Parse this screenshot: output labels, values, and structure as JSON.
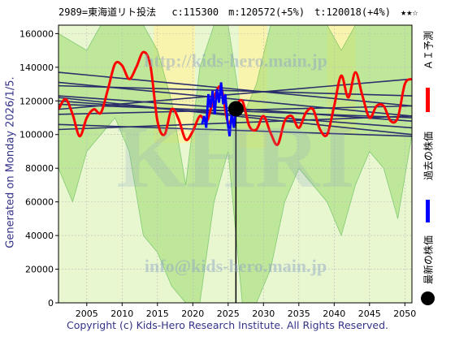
{
  "header": {
    "title": "2989=東海道リト投法　 c:115300　m:120572(+5%)　t:120018(+4%)　★★☆"
  },
  "side_label": "Generated on Monday 2026/1/5.",
  "legend": {
    "ai_label": "ＡＩ予測",
    "past_label": "過去の株価",
    "latest_label": "最新の株価",
    "ai_color": "#ff0000",
    "past_color": "#0000ff",
    "latest_color": "#000000"
  },
  "footer": "Copyright (c) Kids-Hero Research Institute. All Rights Reserved.",
  "watermark": {
    "line1": "http://kids-hero.main.jp",
    "line2": "KHRI",
    "line3": "info@kids-hero.main.jp"
  },
  "chart_data": {
    "type": "line",
    "xlim": [
      2001,
      2051
    ],
    "ylim": [
      0,
      165000
    ],
    "x_ticks": [
      2005,
      2010,
      2015,
      2020,
      2025,
      2030,
      2035,
      2040,
      2045,
      2050
    ],
    "y_ticks": [
      0,
      20000,
      40000,
      60000,
      80000,
      100000,
      120000,
      140000,
      160000
    ],
    "latest_point": {
      "x": 2026.1,
      "y": 115300
    },
    "ai_prediction": {
      "name": "ＡＩ予測",
      "x": [
        2001,
        2002,
        2003,
        2004,
        2005,
        2006,
        2007,
        2008,
        2009,
        2010,
        2011,
        2012,
        2013,
        2014,
        2015,
        2016,
        2017,
        2018,
        2019,
        2020,
        2021,
        2022,
        2023,
        2024,
        2025,
        2026,
        2027,
        2028,
        2029,
        2030,
        2031,
        2032,
        2033,
        2034,
        2035,
        2036,
        2037,
        2038,
        2039,
        2040,
        2041,
        2042,
        2043,
        2044,
        2045,
        2046,
        2047,
        2048,
        2049,
        2050,
        2051
      ],
      "y": [
        115000,
        121000,
        112000,
        99000,
        110000,
        115000,
        113000,
        127000,
        142000,
        141000,
        133000,
        140000,
        149000,
        141000,
        108000,
        100000,
        115000,
        109000,
        97000,
        102000,
        111000,
        108000,
        122000,
        128000,
        107000,
        116000,
        120000,
        105000,
        103000,
        111000,
        101000,
        94000,
        108000,
        111000,
        104000,
        113000,
        115000,
        103000,
        100000,
        117000,
        135000,
        122000,
        137000,
        123000,
        110000,
        117000,
        117000,
        108000,
        110000,
        130000,
        133000
      ]
    },
    "past_price": {
      "name": "過去の株価",
      "x": [
        2021.3,
        2021.6,
        2021.9,
        2022.2,
        2022.5,
        2022.8,
        2023.1,
        2023.4,
        2023.7,
        2024.0,
        2024.3,
        2024.6,
        2024.9,
        2025.2,
        2025.5,
        2025.8,
        2026.1
      ],
      "y": [
        106000,
        111000,
        104000,
        124000,
        116000,
        126000,
        112000,
        127000,
        119000,
        131000,
        118000,
        124000,
        108000,
        99000,
        113000,
        104000,
        115300
      ]
    },
    "trend_lines": [
      {
        "x": [
          2001,
          2051
        ],
        "y": [
          137000,
          117000
        ]
      },
      {
        "x": [
          2001,
          2051
        ],
        "y": [
          131000,
          111000
        ]
      },
      {
        "x": [
          2001,
          2051
        ],
        "y": [
          129000,
          123000
        ]
      },
      {
        "x": [
          2001,
          2051
        ],
        "y": [
          123000,
          108000
        ]
      },
      {
        "x": [
          2001,
          2051
        ],
        "y": [
          122000,
          100000
        ]
      },
      {
        "x": [
          2001,
          2051
        ],
        "y": [
          120000,
          104000
        ]
      },
      {
        "x": [
          2001,
          2051
        ],
        "y": [
          112000,
          117000
        ]
      },
      {
        "x": [
          2001,
          2051
        ],
        "y": [
          106000,
          99000
        ]
      },
      {
        "x": [
          2001,
          2051
        ],
        "y": [
          103000,
          111000
        ]
      },
      {
        "x": [
          2001,
          2051
        ],
        "y": [
          115000,
          133000
        ]
      },
      {
        "x": [
          2001,
          2051
        ],
        "y": [
          118000,
          110000
        ]
      }
    ],
    "green_bands": [
      {
        "x": [
          2001,
          2003,
          2005,
          2007,
          2009,
          2011,
          2013,
          2015,
          2017,
          2019,
          2021,
          2023,
          2025,
          2027,
          2029,
          2031,
          2033,
          2035,
          2037,
          2039,
          2041,
          2043,
          2045,
          2047,
          2049,
          2051
        ],
        "upper": [
          160000,
          155000,
          150000,
          165000,
          165000,
          165000,
          165000,
          150000,
          120000,
          70000,
          140000,
          165000,
          165000,
          110000,
          130000,
          165000,
          165000,
          165000,
          165000,
          165000,
          150000,
          165000,
          165000,
          165000,
          165000,
          165000
        ],
        "lower": [
          80000,
          60000,
          90000,
          100000,
          110000,
          90000,
          40000,
          30000,
          10000,
          0,
          0,
          60000,
          90000,
          0,
          0,
          20000,
          60000,
          80000,
          70000,
          60000,
          40000,
          70000,
          90000,
          80000,
          50000,
          100000
        ]
      }
    ],
    "yellow_bands": [
      {
        "x0": 2014.5,
        "x1": 2020.3,
        "y0": 95000,
        "y1": 165000
      },
      {
        "x0": 2026.5,
        "x1": 2030.5,
        "y0": 92000,
        "y1": 165000
      },
      {
        "x0": 2039.0,
        "x1": 2043.0,
        "y0": 100000,
        "y1": 165000
      }
    ]
  }
}
